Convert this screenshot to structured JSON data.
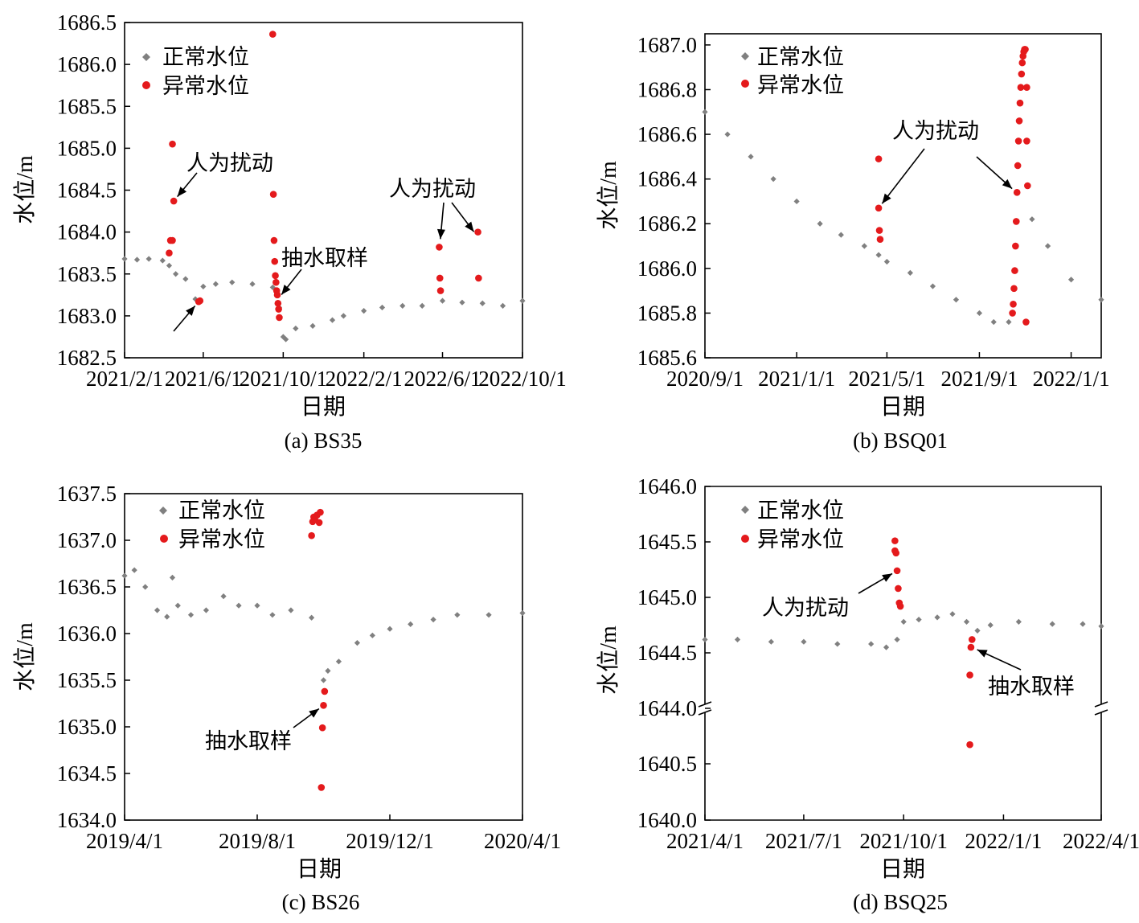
{
  "figure": {
    "legend": {
      "normal": "正常水位",
      "abnormal": "异常水位"
    },
    "colors": {
      "normal": "#808080",
      "abnormal": "#e41a1c",
      "axis": "#000000"
    }
  },
  "chart_data": [
    {
      "panel": "a",
      "type": "scatter",
      "caption": "(a) BS35",
      "xlabel": "日期",
      "ylabel": "水位/m",
      "xlim": [
        "2021/2/1",
        "2022/10/1"
      ],
      "ylim": [
        1682.5,
        1686.5
      ],
      "xticks": [
        "2021/2/1",
        "2021/6/1",
        "2021/10/1",
        "2022/2/1",
        "2022/6/1",
        "2022/10/1"
      ],
      "yticks": [
        1682.5,
        1683.0,
        1683.5,
        1684.0,
        1684.5,
        1685.0,
        1685.5,
        1686.0,
        1686.5
      ],
      "legend_position": "top-left",
      "grid": false,
      "series": [
        {
          "name": "正常水位",
          "marker": "diamond",
          "color": "#808080",
          "points": [
            [
              "2021/2/1",
              1683.68
            ],
            [
              "2021/2/20",
              1683.67
            ],
            [
              "2021/3/10",
              1683.68
            ],
            [
              "2021/3/31",
              1683.66
            ],
            [
              "2021/4/10",
              1683.6
            ],
            [
              "2021/4/20",
              1683.5
            ],
            [
              "2021/5/5",
              1683.44
            ],
            [
              "2021/5/20",
              1683.2
            ],
            [
              "2021/6/1",
              1683.35
            ],
            [
              "2021/6/20",
              1683.38
            ],
            [
              "2021/7/15",
              1683.4
            ],
            [
              "2021/8/15",
              1683.38
            ],
            [
              "2021/9/15",
              1683.34
            ],
            [
              "2021/9/20",
              1683.3
            ],
            [
              "2021/9/25",
              1683.1
            ],
            [
              "2021/10/1",
              1682.75
            ],
            [
              "2021/10/5",
              1682.72
            ],
            [
              "2021/10/20",
              1682.85
            ],
            [
              "2021/11/15",
              1682.88
            ],
            [
              "2021/12/15",
              1682.95
            ],
            [
              "2022/1/1",
              1683.0
            ],
            [
              "2022/2/1",
              1683.06
            ],
            [
              "2022/3/1",
              1683.1
            ],
            [
              "2022/4/1",
              1683.12
            ],
            [
              "2022/5/1",
              1683.12
            ],
            [
              "2022/6/1",
              1683.18
            ],
            [
              "2022/7/1",
              1683.16
            ],
            [
              "2022/8/1",
              1683.15
            ],
            [
              "2022/9/1",
              1683.12
            ],
            [
              "2022/10/1",
              1683.18
            ]
          ]
        },
        {
          "name": "异常水位",
          "marker": "circle",
          "color": "#e41a1c",
          "points": [
            [
              "2021/4/10",
              1683.75
            ],
            [
              "2021/4/12",
              1683.9
            ],
            [
              "2021/4/15",
              1683.9
            ],
            [
              "2021/4/17",
              1684.37
            ],
            [
              "2021/4/15",
              1685.05
            ],
            [
              "2021/5/25",
              1683.17
            ],
            [
              "2021/5/27",
              1683.18
            ],
            [
              "2021/9/15",
              1686.36
            ],
            [
              "2021/9/16",
              1684.45
            ],
            [
              "2021/9/17",
              1683.9
            ],
            [
              "2021/9/18",
              1683.65
            ],
            [
              "2021/9/19",
              1683.48
            ],
            [
              "2021/9/20",
              1683.4
            ],
            [
              "2021/9/21",
              1683.3
            ],
            [
              "2021/9/22",
              1683.25
            ],
            [
              "2021/9/23",
              1683.15
            ],
            [
              "2021/9/24",
              1683.08
            ],
            [
              "2021/9/25",
              1682.98
            ],
            [
              "2022/5/27",
              1683.82
            ],
            [
              "2022/5/28",
              1683.45
            ],
            [
              "2022/5/29",
              1683.3
            ],
            [
              "2022/7/25",
              1684.0
            ],
            [
              "2022/7/26",
              1683.45
            ]
          ]
        }
      ],
      "annotations": [
        {
          "text": "人为扰动",
          "target": [
            "2021/4/17",
            1684.37
          ]
        },
        {
          "text": "人为扰动",
          "target": [
            "2022/5/28",
            1683.85
          ]
        },
        {
          "text": "人为扰动",
          "target": [
            "2022/7/24",
            1683.95
          ]
        },
        {
          "text": "抽水取样",
          "target": [
            "2021/9/23",
            1683.2
          ]
        },
        {
          "text": "",
          "target": [
            "2021/5/25",
            1683.17
          ]
        }
      ]
    },
    {
      "panel": "b",
      "type": "scatter",
      "caption": "(b) BSQ01",
      "xlabel": "日期",
      "ylabel": "水位/m",
      "xlim": [
        "2020/9/1",
        "2022/2/10"
      ],
      "ylim": [
        1685.6,
        1687.05
      ],
      "xticks": [
        "2020/9/1",
        "2021/1/1",
        "2021/5/1",
        "2021/9/1",
        "2022/1/1"
      ],
      "yticks": [
        1685.6,
        1685.8,
        1686.0,
        1686.2,
        1686.4,
        1686.6,
        1686.8,
        1687.0
      ],
      "legend_position": "top-left",
      "grid": false,
      "series": [
        {
          "name": "正常水位",
          "marker": "diamond",
          "color": "#808080",
          "points": [
            [
              "2020/9/1",
              1686.7
            ],
            [
              "2020/10/1",
              1686.6
            ],
            [
              "2020/11/1",
              1686.5
            ],
            [
              "2020/12/1",
              1686.4
            ],
            [
              "2021/1/1",
              1686.3
            ],
            [
              "2021/2/1",
              1686.2
            ],
            [
              "2021/3/1",
              1686.15
            ],
            [
              "2021/4/1",
              1686.1
            ],
            [
              "2021/4/20",
              1686.06
            ],
            [
              "2021/5/1",
              1686.03
            ],
            [
              "2021/6/1",
              1685.98
            ],
            [
              "2021/7/1",
              1685.92
            ],
            [
              "2021/8/1",
              1685.86
            ],
            [
              "2021/9/1",
              1685.8
            ],
            [
              "2021/9/20",
              1685.76
            ],
            [
              "2021/10/10",
              1685.76
            ],
            [
              "2021/11/10",
              1686.22
            ],
            [
              "2021/12/1",
              1686.1
            ],
            [
              "2022/1/1",
              1685.95
            ],
            [
              "2022/2/10",
              1685.86
            ]
          ]
        },
        {
          "name": "异常水位",
          "marker": "circle",
          "color": "#e41a1c",
          "points": [
            [
              "2021/4/20",
              1686.49
            ],
            [
              "2021/4/20",
              1686.27
            ],
            [
              "2021/4/21",
              1686.17
            ],
            [
              "2021/4/22",
              1686.13
            ],
            [
              "2021/10/15",
              1685.8
            ],
            [
              "2021/10/16",
              1685.84
            ],
            [
              "2021/10/17",
              1685.91
            ],
            [
              "2021/10/18",
              1685.99
            ],
            [
              "2021/10/19",
              1686.1
            ],
            [
              "2021/10/20",
              1686.21
            ],
            [
              "2021/10/21",
              1686.34
            ],
            [
              "2021/10/22",
              1686.46
            ],
            [
              "2021/10/23",
              1686.57
            ],
            [
              "2021/10/24",
              1686.66
            ],
            [
              "2021/10/25",
              1686.74
            ],
            [
              "2021/10/26",
              1686.81
            ],
            [
              "2021/10/27",
              1686.87
            ],
            [
              "2021/10/28",
              1686.92
            ],
            [
              "2021/10/29",
              1686.95
            ],
            [
              "2021/10/30",
              1686.97
            ],
            [
              "2021/10/31",
              1686.98
            ],
            [
              "2021/11/1",
              1686.98
            ],
            [
              "2021/11/3",
              1686.81
            ],
            [
              "2021/11/3",
              1686.57
            ],
            [
              "2021/11/4",
              1686.37
            ],
            [
              "2021/11/2",
              1685.76
            ]
          ]
        }
      ],
      "annotations": [
        {
          "text": "人为扰动",
          "target": [
            "2021/4/20",
            1686.27
          ]
        },
        {
          "text": "人为扰动",
          "target": [
            "2021/10/20",
            1686.34
          ]
        }
      ]
    },
    {
      "panel": "c",
      "type": "scatter",
      "caption": "(c) BS26",
      "xlabel": "日期",
      "ylabel": "水位/m",
      "xlim": [
        "2019/4/1",
        "2020/4/1"
      ],
      "ylim": [
        1634.0,
        1637.5
      ],
      "xticks": [
        "2019/4/1",
        "2019/8/1",
        "2019/12/1",
        "2020/4/1"
      ],
      "yticks": [
        1634.0,
        1634.5,
        1635.0,
        1635.5,
        1636.0,
        1636.5,
        1637.0,
        1637.5
      ],
      "legend_position": "top-left",
      "grid": false,
      "series": [
        {
          "name": "正常水位",
          "marker": "diamond",
          "color": "#808080",
          "points": [
            [
              "2019/4/1",
              1636.62
            ],
            [
              "2019/4/10",
              1636.68
            ],
            [
              "2019/4/20",
              1636.5
            ],
            [
              "2019/5/1",
              1636.25
            ],
            [
              "2019/5/10",
              1636.18
            ],
            [
              "2019/5/15",
              1636.6
            ],
            [
              "2019/5/20",
              1636.3
            ],
            [
              "2019/6/1",
              1636.2
            ],
            [
              "2019/6/15",
              1636.25
            ],
            [
              "2019/7/1",
              1636.4
            ],
            [
              "2019/7/15",
              1636.3
            ],
            [
              "2019/8/1",
              1636.3
            ],
            [
              "2019/8/15",
              1636.2
            ],
            [
              "2019/9/1",
              1636.25
            ],
            [
              "2019/9/20",
              1636.17
            ],
            [
              "2019/10/1",
              1635.5
            ],
            [
              "2019/10/5",
              1635.6
            ],
            [
              "2019/10/15",
              1635.7
            ],
            [
              "2019/11/1",
              1635.9
            ],
            [
              "2019/11/15",
              1635.98
            ],
            [
              "2019/12/1",
              1636.05
            ],
            [
              "2019/12/20",
              1636.1
            ],
            [
              "2020/1/10",
              1636.15
            ],
            [
              "2020/2/1",
              1636.2
            ],
            [
              "2020/3/1",
              1636.2
            ],
            [
              "2020/4/1",
              1636.22
            ]
          ]
        },
        {
          "name": "异常水位",
          "marker": "circle",
          "color": "#e41a1c",
          "points": [
            [
              "2019/9/20",
              1637.05
            ],
            [
              "2019/9/21",
              1637.2
            ],
            [
              "2019/9/22",
              1637.25
            ],
            [
              "2019/9/23",
              1637.22
            ],
            [
              "2019/9/25",
              1637.27
            ],
            [
              "2019/9/27",
              1637.19
            ],
            [
              "2019/9/28",
              1637.3
            ],
            [
              "2019/9/29",
              1634.35
            ],
            [
              "2019/9/30",
              1634.99
            ],
            [
              "2019/10/1",
              1635.23
            ],
            [
              "2019/10/2",
              1635.38
            ]
          ]
        }
      ],
      "annotations": [
        {
          "text": "抽水取样",
          "target": [
            "2019/10/1",
            1635.23
          ]
        }
      ]
    },
    {
      "panel": "d",
      "type": "scatter",
      "caption": "(d) BSQ25",
      "xlabel": "日期",
      "ylabel": "水位/m",
      "xlim": [
        "2021/4/1",
        "2022/4/1"
      ],
      "y_break": {
        "lower_range": [
          1640.0,
          1641.0
        ],
        "upper_range": [
          1644.0,
          1646.0
        ]
      },
      "xticks": [
        "2021/4/1",
        "2021/7/1",
        "2021/10/1",
        "2022/1/1",
        "2022/4/1"
      ],
      "yticks": [
        1640.0,
        1640.5,
        1644.0,
        1644.5,
        1645.0,
        1645.5,
        1646.0
      ],
      "legend_position": "top-left",
      "grid": false,
      "series": [
        {
          "name": "正常水位",
          "marker": "diamond",
          "color": "#808080",
          "points": [
            [
              "2021/4/1",
              1644.62
            ],
            [
              "2021/5/1",
              1644.62
            ],
            [
              "2021/6/1",
              1644.6
            ],
            [
              "2021/7/1",
              1644.6
            ],
            [
              "2021/8/1",
              1644.58
            ],
            [
              "2021/9/1",
              1644.58
            ],
            [
              "2021/9/15",
              1644.55
            ],
            [
              "2021/9/25",
              1644.62
            ],
            [
              "2021/10/1",
              1644.78
            ],
            [
              "2021/10/15",
              1644.8
            ],
            [
              "2021/11/1",
              1644.82
            ],
            [
              "2021/11/15",
              1644.85
            ],
            [
              "2021/11/28",
              1644.78
            ],
            [
              "2021/12/8",
              1644.7
            ],
            [
              "2021/12/20",
              1644.75
            ],
            [
              "2022/1/15",
              1644.78
            ],
            [
              "2022/2/15",
              1644.76
            ],
            [
              "2022/3/15",
              1644.76
            ],
            [
              "2022/4/1",
              1644.74
            ]
          ]
        },
        {
          "name": "异常水位",
          "marker": "circle",
          "color": "#e41a1c",
          "points": [
            [
              "2021/9/23",
              1645.51
            ],
            [
              "2021/9/23",
              1645.42
            ],
            [
              "2021/9/24",
              1645.4
            ],
            [
              "2021/9/25",
              1645.24
            ],
            [
              "2021/9/26",
              1645.08
            ],
            [
              "2021/9/27",
              1644.95
            ],
            [
              "2021/9/28",
              1644.92
            ],
            [
              "2021/12/1",
              1644.3
            ],
            [
              "2021/12/2",
              1644.55
            ],
            [
              "2021/12/3",
              1644.62
            ],
            [
              "2021/12/1",
              1640.67
            ]
          ]
        }
      ],
      "annotations": [
        {
          "text": "人为扰动",
          "target": [
            "2021/9/25",
            1645.24
          ]
        },
        {
          "text": "抽水取样",
          "target": [
            "2021/12/3",
            1644.55
          ]
        }
      ]
    }
  ]
}
